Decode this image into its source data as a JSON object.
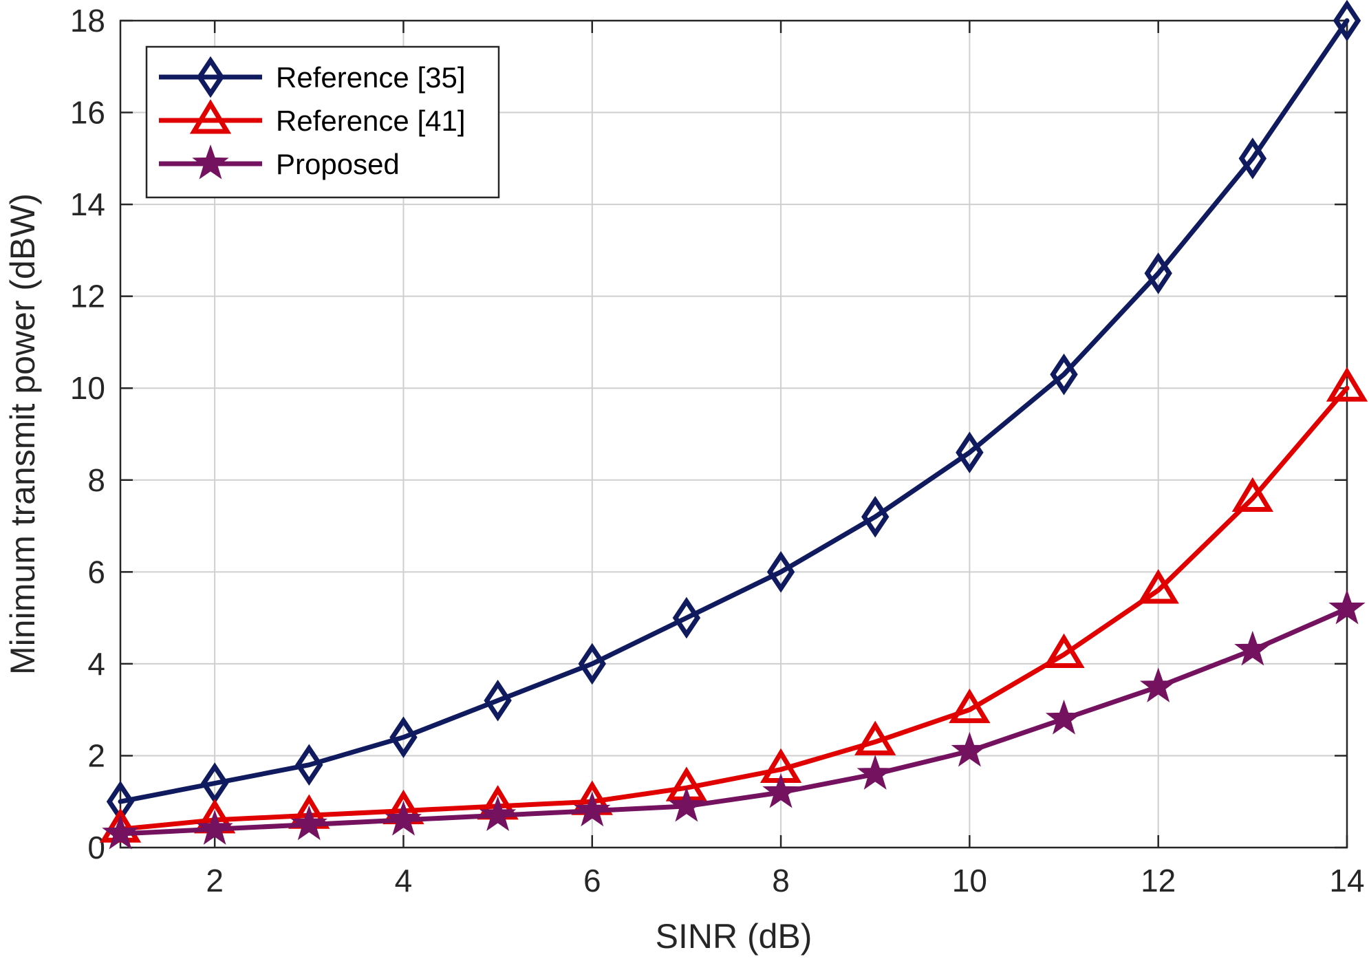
{
  "chart_data": {
    "type": "line",
    "title": "",
    "xlabel": "SINR (dB)",
    "ylabel": "Minimum transmit power (dBW)",
    "xlim": [
      1,
      14
    ],
    "ylim": [
      0,
      18
    ],
    "xticks": [
      2,
      4,
      6,
      8,
      10,
      12,
      14
    ],
    "yticks": [
      0,
      2,
      4,
      6,
      8,
      10,
      12,
      14,
      16,
      18
    ],
    "grid": true,
    "legend_position": "top-left",
    "x": [
      1,
      2,
      3,
      4,
      5,
      6,
      7,
      8,
      9,
      10,
      11,
      12,
      13,
      14
    ],
    "series": [
      {
        "name": "Reference [35]",
        "color": "#0f1a5f",
        "marker": "diamond",
        "values": [
          1.0,
          1.4,
          1.8,
          2.4,
          3.2,
          4.0,
          5.0,
          6.0,
          7.2,
          8.6,
          10.3,
          12.5,
          15.0,
          18.0
        ]
      },
      {
        "name": "Reference [41]",
        "color": "#e00000",
        "marker": "triangle",
        "values": [
          0.4,
          0.6,
          0.7,
          0.8,
          0.9,
          1.0,
          1.3,
          1.7,
          2.3,
          3.0,
          4.2,
          5.6,
          7.6,
          10.0
        ]
      },
      {
        "name": "Proposed",
        "color": "#74125f",
        "marker": "star",
        "values": [
          0.3,
          0.4,
          0.5,
          0.6,
          0.7,
          0.8,
          0.9,
          1.2,
          1.6,
          2.1,
          2.8,
          3.5,
          4.3,
          5.2
        ]
      }
    ]
  }
}
